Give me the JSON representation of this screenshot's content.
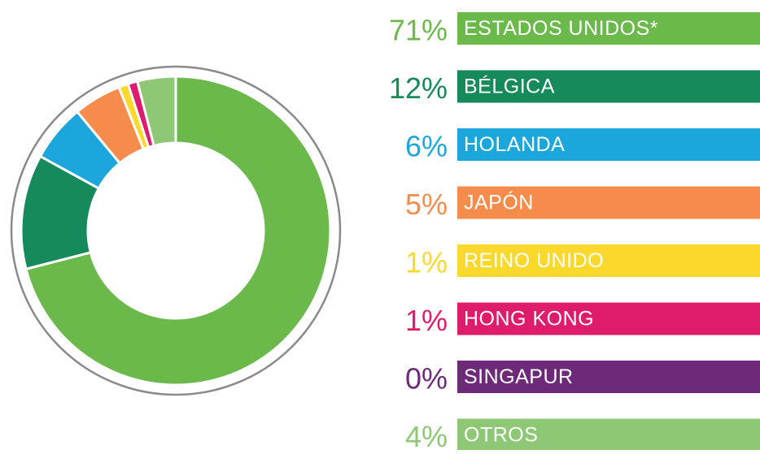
{
  "chart_data": {
    "type": "donut",
    "categories": [
      "ESTADOS UNIDOS*",
      "BÉLGICA",
      "HOLANDA",
      "JAPÓN",
      "REINO UNIDO",
      "HONG KONG",
      "SINGAPUR",
      "OTROS"
    ],
    "values": [
      71,
      12,
      6,
      5,
      1,
      1,
      0,
      4
    ],
    "value_labels": [
      "71%",
      "12%",
      "6%",
      "5%",
      "1%",
      "1%",
      "0%",
      "4%"
    ],
    "colors": [
      "#6ab94a",
      "#178a5b",
      "#1ba7dc",
      "#f68c4c",
      "#fbd82c",
      "#df1b6b",
      "#6c2a78",
      "#8ec874"
    ]
  }
}
